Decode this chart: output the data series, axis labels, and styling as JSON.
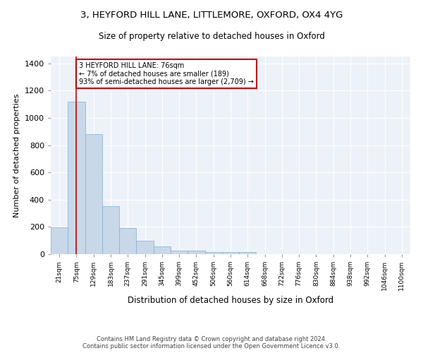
{
  "title_line1": "3, HEYFORD HILL LANE, LITTLEMORE, OXFORD, OX4 4YG",
  "title_line2": "Size of property relative to detached houses in Oxford",
  "xlabel": "Distribution of detached houses by size in Oxford",
  "ylabel": "Number of detached properties",
  "bar_color": "#c8d8e8",
  "bar_edge_color": "#7fafd0",
  "annotation_text_line1": "3 HEYFORD HILL LANE: 76sqm",
  "annotation_text_line2": "← 7% of detached houses are smaller (189)",
  "annotation_text_line3": "93% of semi-detached houses are larger (2,709) →",
  "annotation_box_facecolor": "#ffffff",
  "annotation_box_edgecolor": "#cc0000",
  "vline_color": "#cc0000",
  "categories": [
    "21sqm",
    "75sqm",
    "129sqm",
    "183sqm",
    "237sqm",
    "291sqm",
    "345sqm",
    "399sqm",
    "452sqm",
    "506sqm",
    "560sqm",
    "614sqm",
    "668sqm",
    "722sqm",
    "776sqm",
    "830sqm",
    "884sqm",
    "938sqm",
    "992sqm",
    "1046sqm",
    "1100sqm"
  ],
  "values": [
    195,
    1120,
    880,
    350,
    190,
    100,
    55,
    25,
    25,
    17,
    17,
    15,
    0,
    0,
    0,
    0,
    0,
    0,
    0,
    0,
    0
  ],
  "ylim": [
    0,
    1450
  ],
  "yticks": [
    0,
    200,
    400,
    600,
    800,
    1000,
    1200,
    1400
  ],
  "background_color": "#edf2f9",
  "footer_line1": "Contains HM Land Registry data © Crown copyright and database right 2024.",
  "footer_line2": "Contains public sector information licensed under the Open Government Licence v3.0.",
  "figsize": [
    6.0,
    5.0
  ],
  "dpi": 100
}
